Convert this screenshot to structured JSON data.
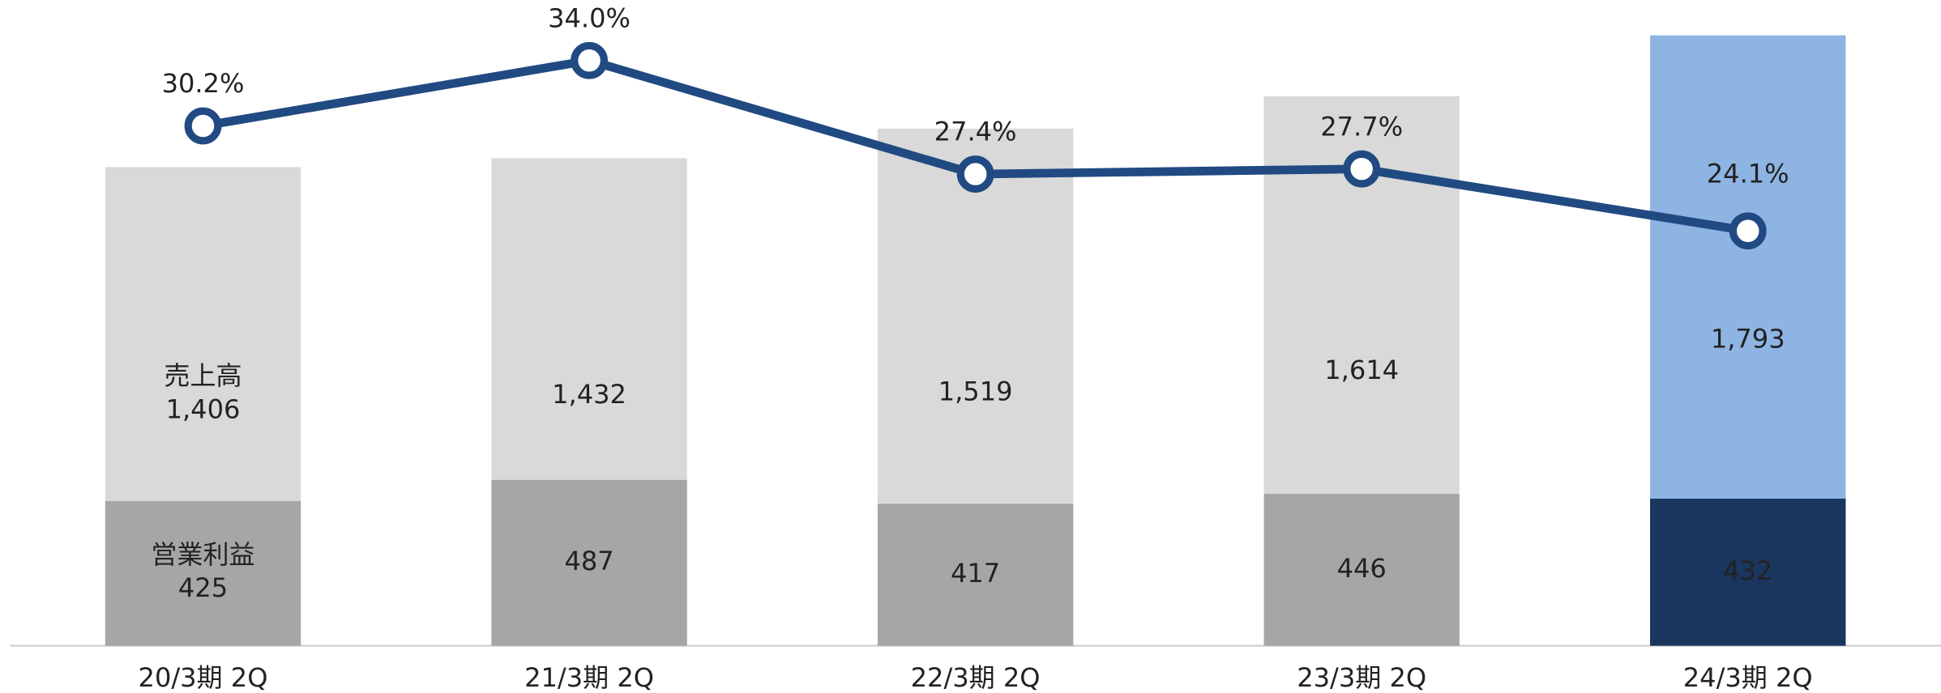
{
  "chart_data": {
    "type": "bar-line",
    "categories": [
      "20/3期 2Q",
      "21/3期 2Q",
      "22/3期 2Q",
      "23/3期 2Q",
      "24/3期 2Q"
    ],
    "ylim": [
      0,
      1896
    ],
    "y2lim": [
      0,
      37.5
    ],
    "series": [
      {
        "name": "売上高",
        "type": "bar",
        "values": [
          1406,
          1432,
          1519,
          1614,
          1793
        ],
        "value_labels": [
          "1,406",
          "1,432",
          "1,519",
          "1,614",
          "1,793"
        ],
        "colors": [
          "#d9d9d9",
          "#d9d9d9",
          "#d9d9d9",
          "#d9d9d9",
          "#8eb4e3"
        ]
      },
      {
        "name": "営業利益",
        "type": "bar",
        "values": [
          425,
          487,
          417,
          446,
          432
        ],
        "colors": [
          "#a6a6a6",
          "#a6a6a6",
          "#a6a6a6",
          "#a6a6a6",
          "#1a355e"
        ]
      },
      {
        "type": "line",
        "axis": "y2",
        "color": "#214a82",
        "values": [
          30.2,
          34.0,
          27.4,
          27.7,
          24.1
        ],
        "value_labels": [
          "30.2%",
          "34.0%",
          "27.4%",
          "27.7%",
          "24.1%"
        ]
      }
    ]
  }
}
